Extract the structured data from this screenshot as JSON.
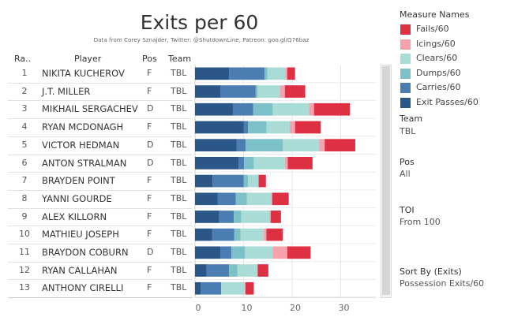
{
  "title": "Exits per 60",
  "subtitle": "Data from Corey Sznajder, Twitter: @ShutdownLine, Patreon: goo.gl/Q76baz",
  "table": {
    "headers": {
      "rank": "Ra..",
      "player": "Player",
      "pos": "Pos",
      "team": "Team"
    }
  },
  "legend": {
    "title": "Measure Names",
    "items": [
      {
        "label": "Fails/60",
        "color": "#df2f43"
      },
      {
        "label": "Icings/60",
        "color": "#f7a1ad"
      },
      {
        "label": "Clears/60",
        "color": "#a9dcd6"
      },
      {
        "label": "Dumps/60",
        "color": "#7cc0c8"
      },
      {
        "label": "Carries/60",
        "color": "#4c7db2"
      },
      {
        "label": "Exit Passes/60",
        "color": "#2a5688"
      }
    ]
  },
  "filters": {
    "team": {
      "title": "Team",
      "value": "TBL"
    },
    "pos": {
      "title": "Pos",
      "value": "All"
    },
    "toi": {
      "title": "TOI",
      "value": "From 100"
    },
    "sort": {
      "title": "Sort By (Exits)",
      "value": "Possession Exits/60"
    }
  },
  "chart_data": {
    "type": "bar",
    "orientation": "horizontal",
    "stacked": true,
    "xlim": [
      0,
      35
    ],
    "x_ticks": [
      "0",
      "10",
      "20",
      "30"
    ],
    "categories": [
      "NIKITA KUCHEROV",
      "J.T. MILLER",
      "MIKHAIL SERGACHEV",
      "RYAN MCDONAGH",
      "VICTOR HEDMAN",
      "ANTON STRALMAN",
      "BRAYDEN POINT",
      "YANNI GOURDE",
      "ALEX KILLORN",
      "MATHIEU JOSEPH",
      "BRAYDON COBURN",
      "RYAN CALLAHAN",
      "ANTHONY CIRELLI"
    ],
    "ranks": [
      "1",
      "2",
      "3",
      "4",
      "5",
      "6",
      "7",
      "8",
      "9",
      "10",
      "11",
      "12",
      "13"
    ],
    "pos": [
      "F",
      "F",
      "D",
      "F",
      "D",
      "D",
      "F",
      "F",
      "F",
      "F",
      "D",
      "F",
      "F"
    ],
    "team": [
      "TBL",
      "TBL",
      "TBL",
      "TBL",
      "TBL",
      "TBL",
      "TBL",
      "TBL",
      "TBL",
      "TBL",
      "TBL",
      "TBL",
      "TBL"
    ],
    "series": [
      {
        "name": "Exit Passes/60",
        "color": "#2a5688",
        "values": [
          7.0,
          5.2,
          7.8,
          10.0,
          8.6,
          9.0,
          3.6,
          4.7,
          5.0,
          3.5,
          5.2,
          2.4,
          1.2
        ]
      },
      {
        "name": "Carries/60",
        "color": "#4c7db2",
        "values": [
          7.3,
          7.3,
          4.2,
          0.9,
          1.8,
          1.1,
          6.4,
          3.7,
          3.0,
          4.6,
          2.3,
          4.6,
          4.2
        ]
      },
      {
        "name": "Dumps/60",
        "color": "#7cc0c8",
        "values": [
          0.6,
          0.4,
          4.0,
          3.8,
          7.7,
          2.0,
          0.9,
          2.3,
          1.5,
          1.3,
          2.8,
          1.7,
          0
        ]
      },
      {
        "name": "Clears/60",
        "color": "#a9dcd6",
        "values": [
          3.7,
          4.6,
          7.5,
          4.8,
          7.5,
          6.4,
          2.2,
          5.0,
          5.8,
          4.8,
          5.7,
          4.2,
          4.8
        ]
      },
      {
        "name": "Icings/60",
        "color": "#f7a1ad",
        "values": [
          0.4,
          1.0,
          1.0,
          1.1,
          1.1,
          0.6,
          0,
          0.2,
          0.3,
          0.5,
          3.0,
          0,
          0.2
        ]
      },
      {
        "name": "Fails/60",
        "color": "#df2f43",
        "values": [
          1.6,
          4.2,
          7.4,
          5.3,
          6.3,
          5.1,
          1.5,
          3.4,
          2.1,
          3.4,
          4.8,
          2.2,
          1.7
        ]
      }
    ]
  }
}
